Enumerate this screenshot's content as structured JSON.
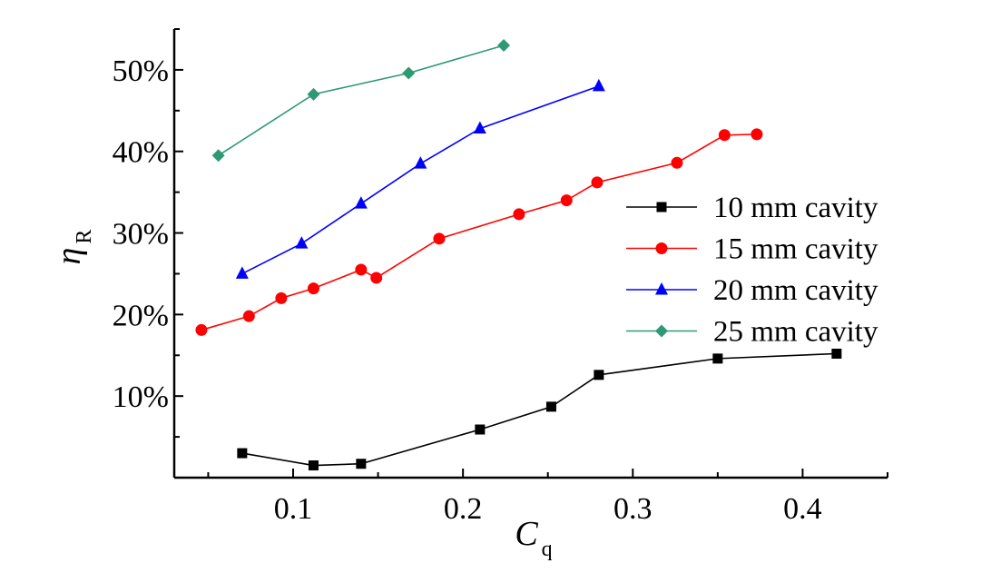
{
  "chart_data": {
    "type": "line",
    "title": "",
    "xlabel": {
      "main": "C",
      "sub": "q"
    },
    "ylabel": {
      "main": "η",
      "sub": "R"
    },
    "xlim": [
      0.03,
      0.45
    ],
    "ylim": [
      0,
      55
    ],
    "x_ticks": [
      0.1,
      0.2,
      0.3,
      0.4
    ],
    "x_tick_labels": [
      "0.1",
      "0.2",
      "0.3",
      "0.4"
    ],
    "y_ticks": [
      10,
      20,
      30,
      40,
      50
    ],
    "y_tick_labels": [
      "10%",
      "20%",
      "30%",
      "40%",
      "50%"
    ],
    "grid": false,
    "legend_position": "right",
    "series": [
      {
        "name": "10 mm cavity",
        "color": "#000000",
        "marker": "square",
        "x": [
          0.07,
          0.112,
          0.14,
          0.21,
          0.252,
          0.28,
          0.35,
          0.42
        ],
        "y": [
          3.0,
          1.5,
          1.7,
          5.9,
          8.7,
          12.6,
          14.6,
          15.2
        ]
      },
      {
        "name": "15 mm cavity",
        "color": "#ff0000",
        "marker": "circle",
        "x": [
          0.046,
          0.074,
          0.093,
          0.112,
          0.14,
          0.149,
          0.186,
          0.233,
          0.261,
          0.279,
          0.326,
          0.354,
          0.373
        ],
        "y": [
          18.1,
          19.8,
          22.0,
          23.2,
          25.5,
          24.5,
          29.3,
          32.3,
          34.0,
          36.2,
          38.6,
          42.0,
          42.1
        ]
      },
      {
        "name": "20 mm cavity",
        "color": "#0000ff",
        "marker": "triangle",
        "x": [
          0.07,
          0.105,
          0.14,
          0.175,
          0.21,
          0.28
        ],
        "y": [
          25.0,
          28.7,
          33.6,
          38.5,
          42.8,
          48.0
        ]
      },
      {
        "name": "25 mm cavity",
        "color": "#2e9a74",
        "marker": "diamond",
        "x": [
          0.056,
          0.112,
          0.168,
          0.224
        ],
        "y": [
          39.5,
          47.0,
          49.6,
          53.0
        ]
      }
    ]
  }
}
